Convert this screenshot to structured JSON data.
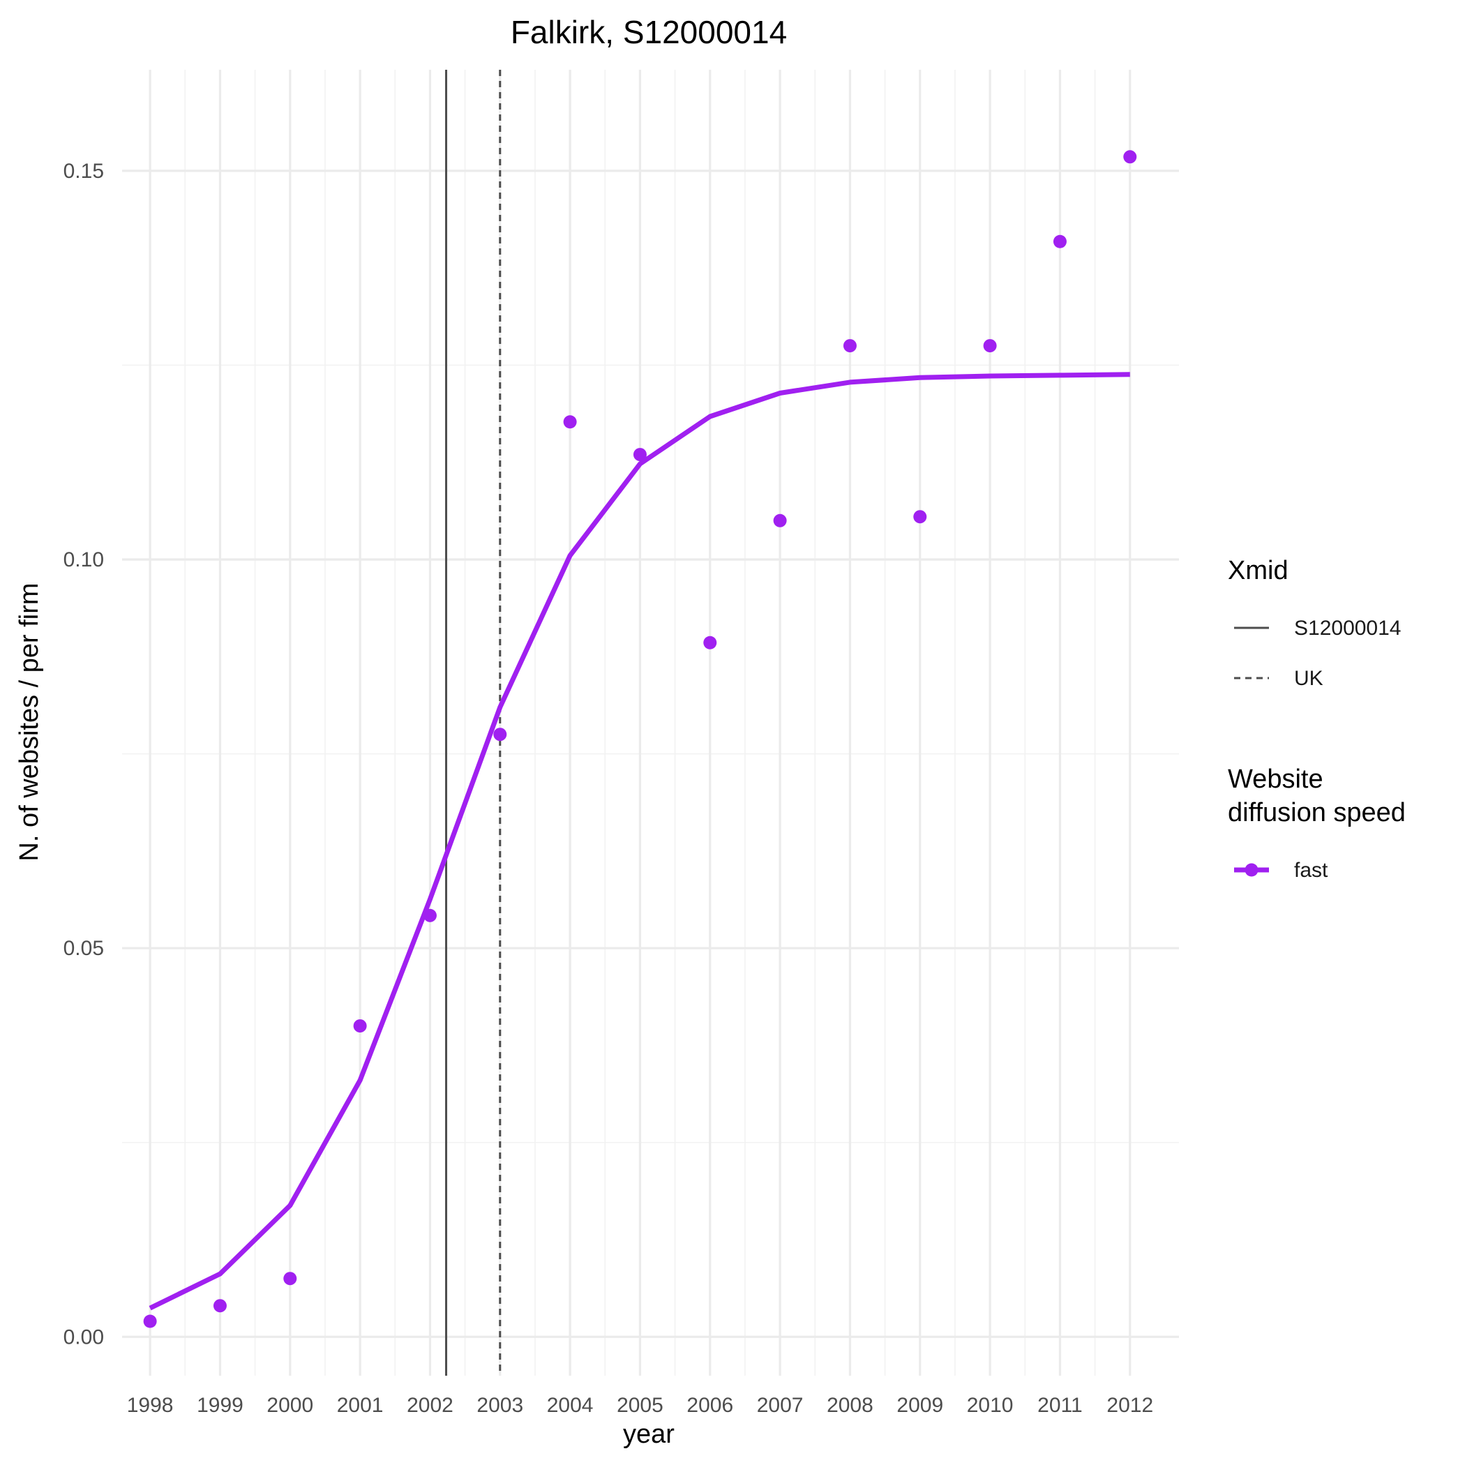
{
  "chart_data": {
    "type": "line",
    "title": "Falkirk, S12000014",
    "xlabel": "year",
    "ylabel": "N. of websites / per firm",
    "xlim": [
      1997.6,
      2012.7
    ],
    "ylim": [
      -0.005,
      0.163
    ],
    "x_ticks": [
      1998,
      1999,
      2000,
      2001,
      2002,
      2003,
      2004,
      2005,
      2006,
      2007,
      2008,
      2009,
      2010,
      2011,
      2012
    ],
    "y_ticks": [
      0.0,
      0.05,
      0.1,
      0.15
    ],
    "y_tick_labels": [
      "0.00",
      "0.05",
      "0.10",
      "0.15"
    ],
    "grid": true,
    "series": [
      {
        "name": "fast",
        "color": "#a020f0",
        "points": {
          "x": [
            1998,
            1999,
            2000,
            2001,
            2002,
            2003,
            2004,
            2005,
            2006,
            2007,
            2008,
            2009,
            2010,
            2011,
            2012
          ],
          "y": [
            0.002,
            0.004,
            0.0075,
            0.04,
            0.0542,
            0.0775,
            0.1177,
            0.1135,
            0.0893,
            0.105,
            0.1275,
            0.1055,
            0.1275,
            0.1409,
            0.1518
          ]
        },
        "fit": {
          "x": [
            1998,
            1999,
            2000,
            2001,
            2002,
            2003,
            2004,
            2005,
            2006,
            2007,
            2008,
            2009,
            2010,
            2011,
            2012
          ],
          "y": [
            0.0037,
            0.0081,
            0.0169,
            0.033,
            0.0563,
            0.081,
            0.1005,
            0.1123,
            0.1184,
            0.1214,
            0.1228,
            0.1234,
            0.1236,
            0.1237,
            0.1238
          ]
        }
      }
    ],
    "vlines": [
      {
        "name": "S12000014",
        "x": 2002.23,
        "style": "solid",
        "color": "#4d4d4d"
      },
      {
        "name": "UK",
        "x": 2003.0,
        "style": "dashed",
        "color": "#4d4d4d"
      }
    ],
    "legend": {
      "placement": "right",
      "groups": [
        {
          "title_lines": [
            "Xmid"
          ],
          "items": [
            {
              "label": "S12000014",
              "kind": "solid-line"
            },
            {
              "label": "UK",
              "kind": "dashed-line"
            }
          ]
        },
        {
          "title_lines": [
            "Website",
            "diffusion speed"
          ],
          "items": [
            {
              "label": "fast",
              "kind": "line-point"
            }
          ]
        }
      ]
    }
  }
}
